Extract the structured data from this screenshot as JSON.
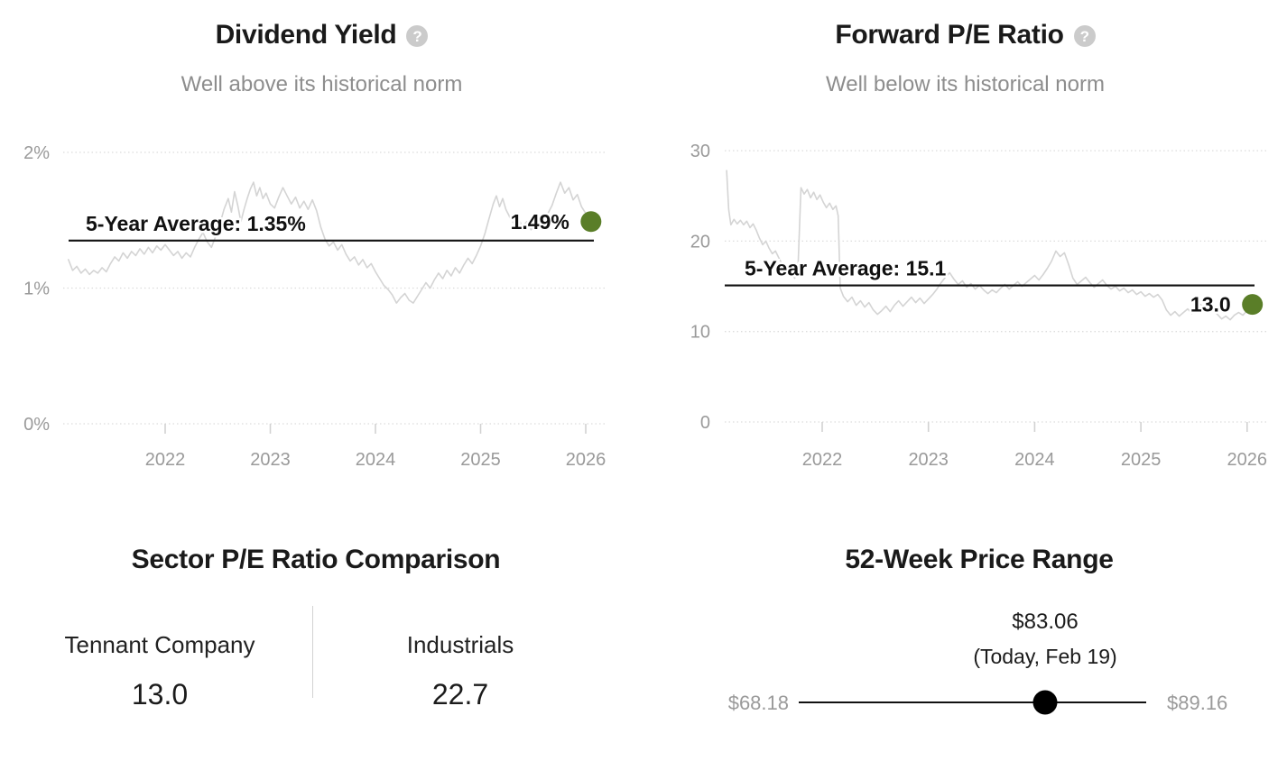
{
  "ui": {
    "help_glyph": "?"
  },
  "colors": {
    "series_line": "#d4d4d4",
    "average_line": "#111111",
    "gridline": "#dcdcdc",
    "tick": "#d2d2d2",
    "axis_label": "#9a9a9a",
    "annotation": "#111111",
    "current_dot_green": "#5a7e28",
    "range_dot_black": "#000000"
  },
  "chart_data": [
    {
      "id": "dividend_yield",
      "type": "line",
      "title": "Dividend Yield",
      "subtitle": "Well above its historical norm",
      "help_icon": "question-mark",
      "legend": "none",
      "grid": "dotted-horizontal",
      "yticks": {
        "values": [
          0,
          1,
          2
        ],
        "labels": [
          "0%",
          "1%",
          "2%"
        ]
      },
      "xticks": {
        "values": [
          2022,
          2023,
          2024,
          2025,
          2026
        ],
        "labels": [
          "2022",
          "2023",
          "2024",
          "2025",
          "2026"
        ]
      },
      "xlim": [
        2021.05,
        2026.25
      ],
      "ylim": [
        0,
        2.1
      ],
      "average": {
        "label": "5-Year Average: 1.35%",
        "value": 1.35
      },
      "current": {
        "label": "1.49%",
        "value": 1.49
      },
      "series": [
        {
          "name": "Dividend Yield",
          "x": [
            2021.08,
            2021.12,
            2021.16,
            2021.2,
            2021.24,
            2021.28,
            2021.32,
            2021.36,
            2021.4,
            2021.44,
            2021.48,
            2021.52,
            2021.56,
            2021.6,
            2021.64,
            2021.68,
            2021.72,
            2021.76,
            2021.8,
            2021.84,
            2021.88,
            2021.92,
            2021.96,
            2022.0,
            2022.04,
            2022.08,
            2022.12,
            2022.16,
            2022.2,
            2022.24,
            2022.28,
            2022.32,
            2022.36,
            2022.4,
            2022.44,
            2022.48,
            2022.52,
            2022.56,
            2022.6,
            2022.63,
            2022.66,
            2022.69,
            2022.72,
            2022.75,
            2022.78,
            2022.81,
            2022.84,
            2022.87,
            2022.9,
            2022.93,
            2022.96,
            2023.0,
            2023.04,
            2023.08,
            2023.12,
            2023.16,
            2023.2,
            2023.24,
            2023.28,
            2023.32,
            2023.36,
            2023.4,
            2023.44,
            2023.48,
            2023.52,
            2023.56,
            2023.6,
            2023.64,
            2023.68,
            2023.72,
            2023.76,
            2023.8,
            2023.84,
            2023.88,
            2023.92,
            2023.96,
            2024.0,
            2024.04,
            2024.08,
            2024.12,
            2024.16,
            2024.2,
            2024.24,
            2024.28,
            2024.32,
            2024.36,
            2024.4,
            2024.44,
            2024.48,
            2024.52,
            2024.56,
            2024.6,
            2024.64,
            2024.68,
            2024.72,
            2024.76,
            2024.8,
            2024.84,
            2024.88,
            2024.92,
            2024.96,
            2025.0,
            2025.04,
            2025.08,
            2025.12,
            2025.15,
            2025.18,
            2025.21,
            2025.24,
            2025.28,
            2025.32,
            2025.36,
            2025.4,
            2025.44,
            2025.48,
            2025.52,
            2025.56,
            2025.6,
            2025.64,
            2025.68,
            2025.72,
            2025.76,
            2025.8,
            2025.84,
            2025.88,
            2025.92,
            2025.96,
            2026.0,
            2026.05
          ],
          "y": [
            1.21,
            1.13,
            1.16,
            1.11,
            1.14,
            1.1,
            1.13,
            1.11,
            1.15,
            1.12,
            1.18,
            1.23,
            1.2,
            1.26,
            1.22,
            1.27,
            1.24,
            1.29,
            1.25,
            1.3,
            1.26,
            1.31,
            1.28,
            1.32,
            1.28,
            1.24,
            1.27,
            1.22,
            1.26,
            1.23,
            1.3,
            1.36,
            1.41,
            1.34,
            1.3,
            1.38,
            1.47,
            1.58,
            1.66,
            1.56,
            1.71,
            1.61,
            1.49,
            1.58,
            1.66,
            1.73,
            1.78,
            1.68,
            1.74,
            1.66,
            1.7,
            1.62,
            1.59,
            1.67,
            1.74,
            1.68,
            1.62,
            1.67,
            1.59,
            1.64,
            1.58,
            1.65,
            1.57,
            1.45,
            1.36,
            1.31,
            1.34,
            1.28,
            1.32,
            1.25,
            1.2,
            1.23,
            1.17,
            1.21,
            1.15,
            1.18,
            1.12,
            1.07,
            1.02,
            0.99,
            0.95,
            0.89,
            0.93,
            0.96,
            0.91,
            0.89,
            0.94,
            0.99,
            1.04,
            1.0,
            1.06,
            1.11,
            1.07,
            1.13,
            1.09,
            1.15,
            1.11,
            1.17,
            1.22,
            1.18,
            1.24,
            1.31,
            1.4,
            1.51,
            1.62,
            1.68,
            1.6,
            1.66,
            1.58,
            1.52,
            1.47,
            1.51,
            1.45,
            1.49,
            1.43,
            1.47,
            1.44,
            1.49,
            1.55,
            1.61,
            1.7,
            1.78,
            1.7,
            1.74,
            1.65,
            1.69,
            1.6,
            1.55,
            1.49
          ]
        }
      ]
    },
    {
      "id": "forward_pe_ratio",
      "type": "line",
      "title": "Forward P/E Ratio",
      "subtitle": "Well below its historical norm",
      "help_icon": "question-mark",
      "legend": "none",
      "grid": "dotted-horizontal",
      "yticks": {
        "values": [
          0,
          10,
          20,
          30
        ],
        "labels": [
          "0",
          "10",
          "20",
          "30"
        ]
      },
      "xticks": {
        "values": [
          2022,
          2023,
          2024,
          2025,
          2026
        ],
        "labels": [
          "2022",
          "2023",
          "2024",
          "2025",
          "2026"
        ]
      },
      "xlim": [
        2021.05,
        2026.25
      ],
      "ylim": [
        0,
        31
      ],
      "average": {
        "label": "5-Year Average: 15.1",
        "value": 15.1
      },
      "current": {
        "label": "13.0",
        "value": 13.0
      },
      "series": [
        {
          "name": "Forward P/E Ratio",
          "x": [
            2021.1,
            2021.12,
            2021.14,
            2021.17,
            2021.2,
            2021.23,
            2021.26,
            2021.29,
            2021.32,
            2021.35,
            2021.38,
            2021.41,
            2021.44,
            2021.47,
            2021.5,
            2021.53,
            2021.56,
            2021.59,
            2021.62,
            2021.65,
            2021.68,
            2021.71,
            2021.74,
            2021.77,
            2021.8,
            2021.83,
            2021.86,
            2021.89,
            2021.92,
            2021.95,
            2021.98,
            2022.01,
            2022.04,
            2022.07,
            2022.1,
            2022.13,
            2022.15,
            2022.17,
            2022.2,
            2022.24,
            2022.28,
            2022.32,
            2022.36,
            2022.4,
            2022.44,
            2022.48,
            2022.52,
            2022.56,
            2022.6,
            2022.64,
            2022.68,
            2022.72,
            2022.76,
            2022.8,
            2022.84,
            2022.88,
            2022.92,
            2022.96,
            2023.0,
            2023.04,
            2023.08,
            2023.12,
            2023.16,
            2023.2,
            2023.24,
            2023.28,
            2023.32,
            2023.36,
            2023.4,
            2023.44,
            2023.48,
            2023.52,
            2023.56,
            2023.6,
            2023.64,
            2023.68,
            2023.72,
            2023.76,
            2023.8,
            2023.84,
            2023.88,
            2023.92,
            2023.96,
            2024.0,
            2024.04,
            2024.08,
            2024.12,
            2024.16,
            2024.2,
            2024.24,
            2024.28,
            2024.32,
            2024.36,
            2024.4,
            2024.44,
            2024.48,
            2024.52,
            2024.56,
            2024.6,
            2024.64,
            2024.68,
            2024.72,
            2024.76,
            2024.8,
            2024.84,
            2024.88,
            2024.92,
            2024.96,
            2025.0,
            2025.04,
            2025.08,
            2025.12,
            2025.16,
            2025.2,
            2025.24,
            2025.28,
            2025.32,
            2025.36,
            2025.4,
            2025.44,
            2025.48,
            2025.52,
            2025.56,
            2025.6,
            2025.64,
            2025.68,
            2025.72,
            2025.76,
            2025.8,
            2025.84,
            2025.88,
            2025.92,
            2025.96,
            2026.0,
            2026.05
          ],
          "y": [
            27.8,
            23.5,
            21.8,
            22.4,
            21.9,
            22.3,
            21.8,
            22.2,
            21.5,
            21.9,
            21.2,
            20.3,
            19.6,
            20.0,
            19.2,
            18.6,
            18.9,
            18.2,
            17.5,
            16.8,
            16.2,
            16.5,
            15.9,
            16.3,
            25.9,
            25.2,
            25.7,
            24.8,
            25.4,
            24.6,
            25.1,
            24.3,
            23.7,
            24.2,
            23.5,
            23.9,
            22.8,
            14.8,
            13.9,
            13.3,
            13.8,
            12.9,
            13.4,
            12.7,
            13.2,
            12.4,
            11.9,
            12.3,
            12.8,
            12.2,
            12.9,
            13.4,
            12.8,
            13.3,
            13.8,
            13.2,
            13.7,
            13.1,
            13.6,
            14.1,
            14.7,
            15.4,
            16.0,
            16.5,
            15.8,
            15.2,
            15.6,
            14.9,
            15.3,
            14.7,
            15.1,
            14.6,
            14.2,
            14.6,
            14.3,
            14.8,
            15.2,
            14.7,
            15.1,
            15.5,
            15.0,
            15.4,
            15.8,
            16.2,
            15.7,
            16.3,
            17.0,
            17.8,
            18.9,
            18.3,
            18.7,
            17.4,
            15.9,
            15.2,
            15.6,
            16.0,
            15.4,
            14.9,
            15.3,
            15.7,
            15.1,
            14.7,
            15.0,
            14.5,
            14.8,
            14.3,
            14.6,
            14.1,
            14.4,
            13.9,
            14.2,
            13.8,
            14.1,
            13.5,
            12.4,
            11.8,
            12.2,
            11.7,
            12.1,
            12.5,
            12.0,
            12.6,
            13.0,
            12.6,
            12.9,
            12.4,
            11.9,
            11.4,
            11.7,
            11.3,
            11.8,
            12.1,
            11.8,
            12.3,
            13.0
          ]
        }
      ]
    },
    {
      "id": "sector_pe_comparison",
      "type": "table",
      "title": "Sector P/E Ratio Comparison",
      "columns": [
        {
          "label": "Tennant Company",
          "value": "13.0"
        },
        {
          "label": "Industrials",
          "value": "22.7"
        }
      ]
    },
    {
      "id": "price_range_52_week",
      "type": "range",
      "title": "52-Week Price Range",
      "low": {
        "label": "$68.18",
        "value": 68.18
      },
      "high": {
        "label": "$89.16",
        "value": 89.16
      },
      "current": {
        "label": "$83.06",
        "sublabel": "(Today, Feb 19)",
        "value": 83.06
      }
    }
  ]
}
